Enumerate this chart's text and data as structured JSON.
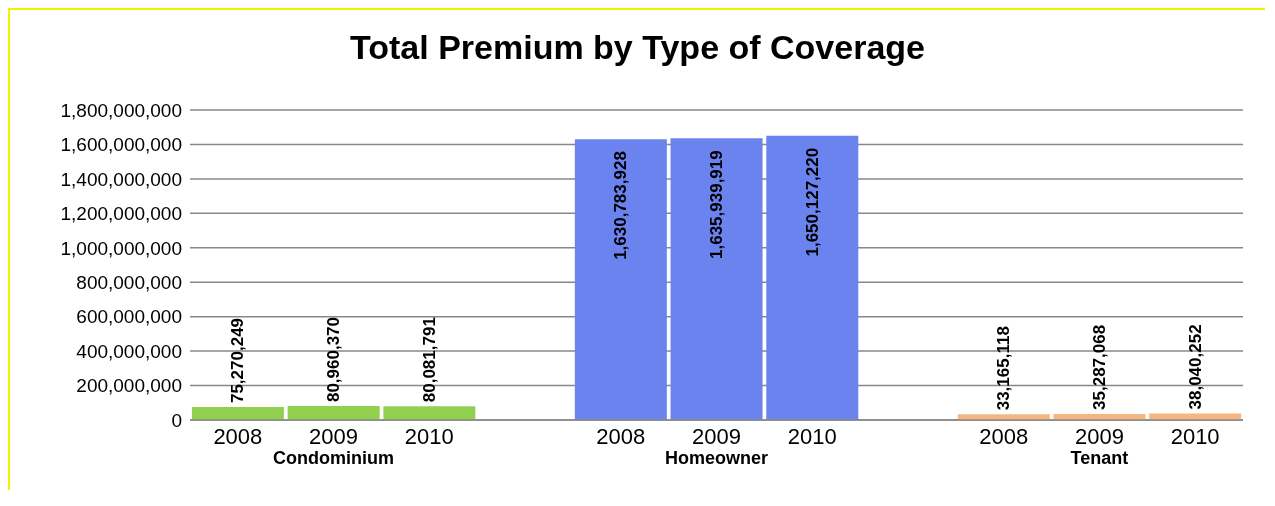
{
  "chart_data": {
    "type": "bar",
    "title": "Total Premium by Type of Coverage",
    "categories": [
      "2008",
      "2009",
      "2010",
      null,
      "2008",
      "2009",
      "2010",
      null,
      "2008",
      "2009",
      "2010"
    ],
    "values": [
      75270249,
      80960370,
      80081791,
      null,
      1630783928,
      1635939919,
      1650127220,
      null,
      33165118,
      35287068,
      38040252
    ],
    "value_labels": [
      "75,270,249",
      "80,960,370",
      "80,081,791",
      null,
      "1,630,783,928",
      "1,635,939,919",
      "1,650,127,220",
      null,
      "33,165,118",
      "35,287,068",
      "38,040,252"
    ],
    "colors": [
      "#92d050",
      "#92d050",
      "#92d050",
      null,
      "#6b83ee",
      "#6b83ee",
      "#6b83ee",
      null,
      "#f6b682",
      "#f6b682",
      "#f6b682"
    ],
    "annotations": [
      "Condominium",
      "Homeowner",
      "Tenant"
    ],
    "ylim": [
      0,
      1800000000
    ],
    "yticks": [
      0,
      {
        "value": 200000000,
        "label": "200,000,000"
      },
      {
        "value": 400000000,
        "label": "400,000,000"
      },
      {
        "value": 600000000,
        "label": "600,000,000"
      },
      {
        "value": 800000000,
        "label": "800,000,000"
      },
      {
        "value": 1000000000,
        "label": "1,000,000,000"
      },
      {
        "value": 1200000000,
        "label": "1,200,000,000"
      },
      {
        "value": 1400000000,
        "label": "1,400,000,000"
      },
      {
        "value": 1600000000,
        "label": "1,600,000,000"
      },
      {
        "value": 1800000000,
        "label": "1,800,000,000"
      }
    ],
    "grid": "y"
  }
}
